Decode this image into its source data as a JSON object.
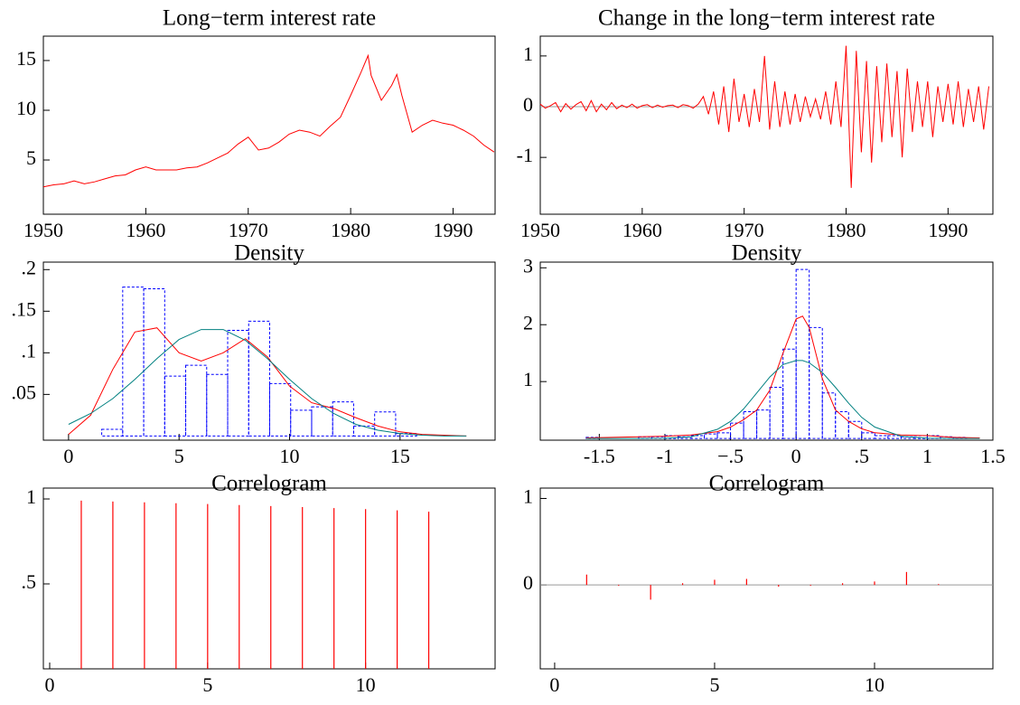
{
  "chart_data": [
    {
      "type": "line",
      "title": "Long−term interest rate",
      "color": "#ff0000",
      "x": [
        1950,
        1951,
        1952,
        1953,
        1954,
        1955,
        1956,
        1957,
        1958,
        1959,
        1960,
        1961,
        1962,
        1963,
        1964,
        1965,
        1966,
        1967,
        1968,
        1969,
        1970,
        1971,
        1972,
        1973,
        1974,
        1975,
        1976,
        1977,
        1978,
        1979,
        1980,
        1981,
        1981.7,
        1982,
        1983,
        1984,
        1984.5,
        1985,
        1986,
        1987,
        1988,
        1989,
        1990,
        1991,
        1992,
        1993,
        1994
      ],
      "values": [
        2.3,
        2.5,
        2.6,
        2.9,
        2.6,
        2.8,
        3.1,
        3.4,
        3.5,
        4.0,
        4.3,
        4.0,
        4.0,
        4.0,
        4.2,
        4.3,
        4.7,
        5.2,
        5.7,
        6.6,
        7.3,
        6.0,
        6.2,
        6.8,
        7.6,
        8.0,
        7.8,
        7.4,
        8.4,
        9.3,
        11.5,
        13.8,
        15.5,
        13.5,
        11.0,
        12.5,
        13.6,
        11.5,
        7.8,
        8.5,
        9.0,
        8.7,
        8.5,
        8.0,
        7.4,
        6.5,
        5.8
      ],
      "xlim": [
        1950,
        1994.1
      ],
      "ylim": [
        -0.45,
        17.45
      ],
      "xticks": [
        1950,
        1960,
        1970,
        1980,
        1990
      ],
      "yticks": [
        5,
        10,
        15
      ]
    },
    {
      "type": "line",
      "title": "Change in the long−term interest rate",
      "color": "#ff0000",
      "zero_line": true,
      "x": [
        1950,
        1950.5,
        1951,
        1951.5,
        1952,
        1952.5,
        1953,
        1953.5,
        1954,
        1954.5,
        1955,
        1955.5,
        1956,
        1956.5,
        1957,
        1957.5,
        1958,
        1958.5,
        1959,
        1959.5,
        1960,
        1960.5,
        1961,
        1961.5,
        1962,
        1962.5,
        1963,
        1963.5,
        1964,
        1964.5,
        1965,
        1965.5,
        1966,
        1966.5,
        1967,
        1967.5,
        1968,
        1968.5,
        1969,
        1969.5,
        1970,
        1970.5,
        1971,
        1971.5,
        1972,
        1972.5,
        1973,
        1973.5,
        1974,
        1974.5,
        1975,
        1975.5,
        1976,
        1976.5,
        1977,
        1977.5,
        1978,
        1978.5,
        1979,
        1979.5,
        1980,
        1980.5,
        1981,
        1981.5,
        1982,
        1982.5,
        1983,
        1983.5,
        1984,
        1984.5,
        1985,
        1985.5,
        1986,
        1986.5,
        1987,
        1987.5,
        1988,
        1988.5,
        1989,
        1989.5,
        1990,
        1990.5,
        1991,
        1991.5,
        1992,
        1992.5,
        1993,
        1993.5,
        1994
      ],
      "values": [
        0.05,
        -0.03,
        0.02,
        0.08,
        -0.1,
        0.06,
        -0.05,
        0.04,
        0.1,
        -0.08,
        0.12,
        -0.1,
        0.05,
        -0.06,
        0.08,
        -0.04,
        0.03,
        -0.02,
        0.05,
        -0.03,
        0.02,
        0.04,
        -0.02,
        0.03,
        -0.01,
        0.02,
        0.03,
        -0.02,
        0.04,
        0.02,
        -0.03,
        0.05,
        0.2,
        -0.15,
        0.3,
        -0.35,
        0.4,
        -0.5,
        0.55,
        -0.3,
        0.25,
        -0.4,
        0.35,
        -0.3,
        1.0,
        -0.45,
        0.5,
        -0.4,
        0.3,
        -0.35,
        0.25,
        -0.3,
        0.2,
        -0.2,
        0.15,
        -0.25,
        0.3,
        -0.35,
        0.5,
        -0.4,
        1.2,
        -1.6,
        1.1,
        -0.9,
        0.9,
        -1.1,
        0.8,
        -0.7,
        0.85,
        -0.6,
        0.7,
        -1.0,
        0.75,
        -0.5,
        0.5,
        -0.4,
        0.5,
        -0.6,
        0.4,
        -0.3,
        0.45,
        -0.35,
        0.5,
        -0.4,
        0.35,
        -0.3,
        0.4,
        -0.45,
        0.4
      ],
      "xlim": [
        1950,
        1994.4
      ],
      "ylim": [
        -2.12,
        1.39
      ],
      "xticks": [
        1950,
        1960,
        1970,
        1980,
        1990
      ],
      "yticks": [
        -1,
        0,
        1
      ]
    },
    {
      "type": "histogram",
      "title": "Density",
      "color": "#0000ff",
      "bins": [
        1.5,
        2.45,
        3.4,
        4.35,
        5.3,
        6.25,
        7.2,
        8.15,
        9.1,
        10.05,
        11,
        11.95,
        12.9,
        13.85,
        14.8,
        15.75
      ],
      "values": [
        0.008,
        0.179,
        0.177,
        0.072,
        0.085,
        0.074,
        0.127,
        0.138,
        0.063,
        0.031,
        0.035,
        0.041,
        0.012,
        0.029,
        0.003
      ],
      "curves": [
        {
          "color": "#ff0000",
          "x": [
            0,
            1,
            2,
            3,
            4,
            5,
            6,
            7,
            8,
            9,
            10,
            11,
            12,
            13,
            14,
            15,
            16,
            17,
            18
          ],
          "values": [
            0.002,
            0.025,
            0.08,
            0.125,
            0.13,
            0.1,
            0.09,
            0.1,
            0.117,
            0.095,
            0.06,
            0.04,
            0.033,
            0.022,
            0.012,
            0.005,
            0.002,
            0.001,
            0
          ]
        },
        {
          "color": "#008080",
          "x": [
            0,
            1,
            2,
            3,
            4,
            5,
            6,
            7,
            8,
            9,
            10,
            11,
            12,
            13,
            14,
            15,
            16,
            17,
            18
          ],
          "values": [
            0.014,
            0.027,
            0.045,
            0.068,
            0.093,
            0.116,
            0.128,
            0.128,
            0.115,
            0.093,
            0.068,
            0.045,
            0.027,
            0.014,
            0.007,
            0.003,
            0.001,
            0,
            0
          ]
        }
      ],
      "xlim": [
        -1.14,
        19.3
      ],
      "ylim": [
        -0.005,
        0.209
      ],
      "xticks": [
        0,
        5,
        10,
        15
      ],
      "yticks": [
        {
          "value": 0.05,
          "label": ".05"
        },
        {
          "value": 0.1,
          "label": ".1"
        },
        {
          "value": 0.15,
          "label": ".15"
        },
        {
          "value": 0.2,
          "label": ".2"
        }
      ]
    },
    {
      "type": "histogram",
      "title": "Density",
      "color": "#0000ff",
      "bins": [
        -1.6,
        -1.5,
        -1.4,
        -1.3,
        -1.2,
        -1.1,
        -1.0,
        -0.9,
        -0.8,
        -0.7,
        -0.6,
        -0.5,
        -0.4,
        -0.3,
        -0.2,
        -0.1,
        0,
        0.1,
        0.2,
        0.3,
        0.4,
        0.5,
        0.6,
        0.7,
        0.8,
        0.9,
        1.0,
        1.1,
        1.2,
        1.3,
        1.4
      ],
      "values": [
        0.02,
        0,
        0,
        0,
        0.03,
        0.03,
        0.05,
        0.03,
        0.05,
        0.08,
        0.1,
        0.27,
        0.47,
        0.5,
        0.9,
        1.57,
        2.97,
        1.95,
        0.8,
        0.47,
        0.3,
        0.1,
        0.05,
        0.05,
        0.03,
        0.05,
        0.05,
        0.03,
        0.02,
        0
      ],
      "curves": [
        {
          "color": "#ff0000",
          "x": [
            -1.6,
            -1.4,
            -1.2,
            -1.0,
            -0.8,
            -0.6,
            -0.5,
            -0.4,
            -0.3,
            -0.2,
            -0.1,
            0,
            0.05,
            0.1,
            0.2,
            0.3,
            0.4,
            0.5,
            0.6,
            0.8,
            1.0,
            1.2,
            1.4
          ],
          "values": [
            0.01,
            0.02,
            0.03,
            0.04,
            0.06,
            0.12,
            0.2,
            0.33,
            0.5,
            0.85,
            1.5,
            2.1,
            2.15,
            1.95,
            1.05,
            0.5,
            0.3,
            0.17,
            0.1,
            0.06,
            0.05,
            0.02,
            0.01
          ]
        },
        {
          "color": "#008080",
          "x": [
            -1.6,
            -1.4,
            -1.2,
            -1.0,
            -0.8,
            -0.6,
            -0.5,
            -0.4,
            -0.3,
            -0.2,
            -0.1,
            0,
            0.05,
            0.1,
            0.2,
            0.3,
            0.4,
            0.5,
            0.6,
            0.8,
            1.0,
            1.2,
            1.4
          ],
          "values": [
            0,
            0,
            0,
            0.003,
            0.03,
            0.16,
            0.3,
            0.52,
            0.8,
            1.08,
            1.3,
            1.37,
            1.37,
            1.33,
            1.16,
            0.9,
            0.62,
            0.37,
            0.2,
            0.04,
            0.005,
            0,
            0
          ]
        }
      ],
      "xlim": [
        -1.95,
        1.5
      ],
      "ylim": [
        -0.03,
        3.1
      ],
      "xticks": [
        -1.5,
        -1,
        {
          "value": -0.5,
          "label": "−.5"
        },
        0,
        {
          "value": 0.5,
          "label": ".5"
        },
        1,
        1.5
      ],
      "yticks": [
        1,
        2,
        3
      ]
    },
    {
      "type": "stem",
      "title": "Correlogram",
      "color": "#ff0000",
      "x": [
        1,
        2,
        3,
        4,
        5,
        6,
        7,
        8,
        9,
        10,
        11,
        12
      ],
      "values": [
        0.99,
        0.985,
        0.98,
        0.975,
        0.97,
        0.964,
        0.958,
        0.952,
        0.946,
        0.94,
        0.933,
        0.925
      ],
      "xlim": [
        -0.2,
        14.1
      ],
      "ylim": [
        0,
        1.064
      ],
      "xticks": [
        0,
        5,
        10
      ],
      "yticks": [
        {
          "value": 0.5,
          "label": ".5"
        },
        1
      ]
    },
    {
      "type": "stem",
      "title": "Correlogram",
      "color": "#ff0000",
      "zero_line": true,
      "x": [
        1,
        2,
        3,
        4,
        5,
        6,
        7,
        8,
        9,
        10,
        11,
        12
      ],
      "values": [
        0.12,
        -0.01,
        -0.17,
        0.02,
        0.06,
        0.07,
        -0.02,
        -0.01,
        0.02,
        0.04,
        0.15,
        0.01
      ],
      "xlim": [
        -0.45,
        13.7
      ],
      "ylim": [
        -0.97,
        1.12
      ],
      "xticks": [
        0,
        5,
        10
      ],
      "yticks": [
        0,
        1
      ]
    }
  ]
}
